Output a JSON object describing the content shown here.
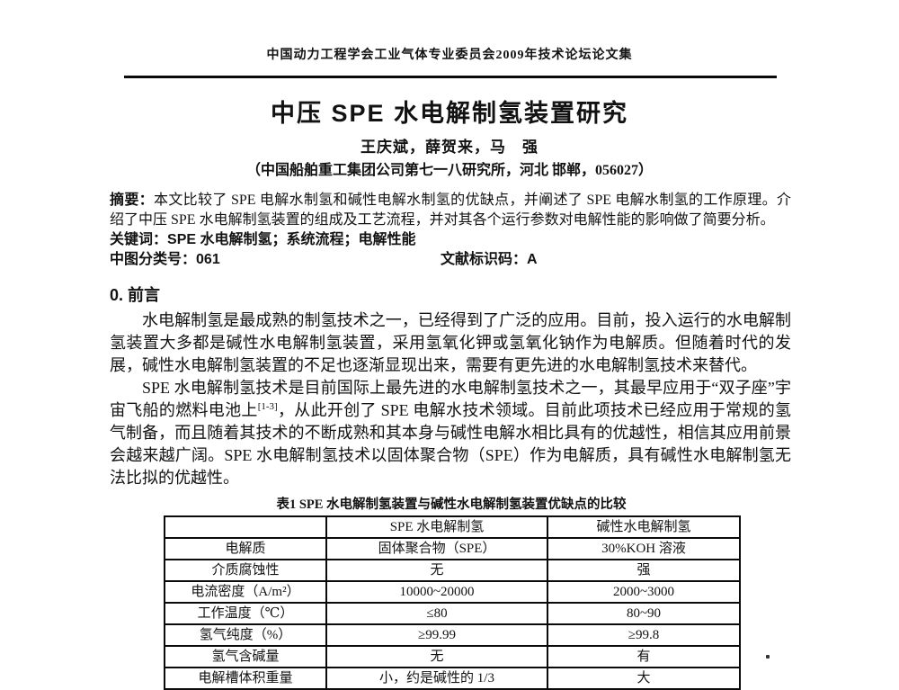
{
  "colors": {
    "ink": "#121212",
    "paper": "#ffffff"
  },
  "page": {
    "header": "中国动力工程学会工业气体专业委员会2009年技术论坛论文集",
    "title": "中压 SPE 水电解制氢装置研究",
    "authors": "王庆斌，薛贺来，马　强",
    "affiliation": "（中国船舶重工集团公司第七一八研究所，河北 邯郸，056027）"
  },
  "abstract": {
    "label": "摘要：",
    "text": "本文比较了 SPE 电解水制氢和碱性电解水制氢的优缺点，并阐述了 SPE 电解水制氢的工作原理。介绍了中压 SPE 水电解制氢装置的组成及工艺流程，并对其各个运行参数对电解性能的影响做了简要分析。",
    "keywords_label": "关键词：",
    "keywords": "SPE 水电解制氢；系统流程；电解性能",
    "clc_label": "中图分类号：",
    "clc": "061",
    "doc_code_label": "文献标识码：",
    "doc_code": "A"
  },
  "sections": {
    "intro_heading": "0. 前言",
    "para1": "水电解制氢是最成熟的制氢技术之一，已经得到了广泛的应用。目前，投入运行的水电解制氢装置大多都是碱性水电解制氢装置，采用氢氧化钾或氢氧化钠作为电解质。但随着时代的发展，碱性水电解制氢装置的不足也逐渐显现出来，需要有更先进的水电解制氢技术来替代。",
    "para2_seg1": "SPE 水电解制氢技术是目前国际上最先进的水电解制氢技术之一，其最早应用于“双子座”宇宙飞船的燃料电池上",
    "para2_ref": "[1-3]",
    "para2_seg2": "，从此开创了 SPE 电解水技术领域。目前此项技术已经应用于常规的氢气制备，而且随着其技术的不断成熟和其本身与碱性电解水相比具有的优越性，相信其应用前景会越来越广阔。SPE 水电解制氢技术以固体聚合物（SPE）作为电解质，具有碱性水电解制氢无法比拟的优越性。"
  },
  "table": {
    "caption": "表1 SPE 水电解制氢装置与碱性水电解制氢装置优缺点的比较",
    "headers": [
      "",
      "SPE 水电解制氢",
      "碱性水电解制氢"
    ],
    "rows": [
      [
        "电解质",
        "固体聚合物（SPE）",
        "30%KOH 溶液"
      ],
      [
        "介质腐蚀性",
        "无",
        "强"
      ],
      [
        "电流密度（A/m²）",
        "10000~20000",
        "2000~3000"
      ],
      [
        "工作温度（℃）",
        "≤80",
        "80~90"
      ],
      [
        "氢气纯度（%）",
        "≥99.99",
        "≥99.8"
      ],
      [
        "氢气含碱量",
        "无",
        "有"
      ],
      [
        "电解槽体积重量",
        "小，约是碱性的 1/3",
        "大"
      ]
    ]
  }
}
